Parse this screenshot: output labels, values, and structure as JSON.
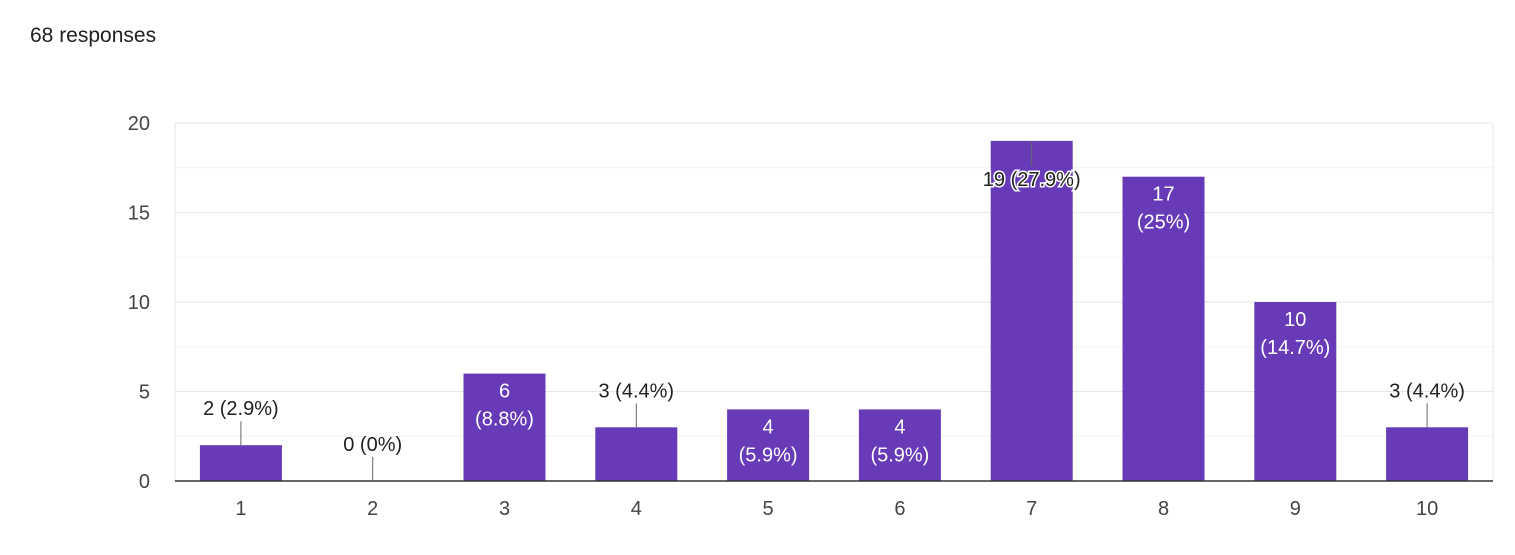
{
  "header": {
    "responses": "68 responses"
  },
  "colors": {
    "bar": "#673ab7",
    "grid": "#e6e6e6",
    "minorGrid": "#f2f2f2",
    "axis": "#333333",
    "label": "#444444",
    "inside_label": "#ffffff"
  },
  "chart_data": {
    "type": "bar",
    "categories": [
      "1",
      "2",
      "3",
      "4",
      "5",
      "6",
      "7",
      "8",
      "9",
      "10"
    ],
    "values": [
      2,
      0,
      6,
      3,
      4,
      4,
      19,
      17,
      10,
      3
    ],
    "data_labels": [
      "2 (2.9%)",
      "0 (0%)",
      "6 (8.8%)",
      "3 (4.4%)",
      "4 (5.9%)",
      "4 (5.9%)",
      "19 (27.9%)",
      "17 (25%)",
      "10 (14.7%)",
      "3 (4.4%)"
    ],
    "yticks": [
      0,
      5,
      10,
      15,
      20
    ],
    "ylim": [
      0,
      20
    ],
    "grid": true,
    "legend": "none"
  }
}
